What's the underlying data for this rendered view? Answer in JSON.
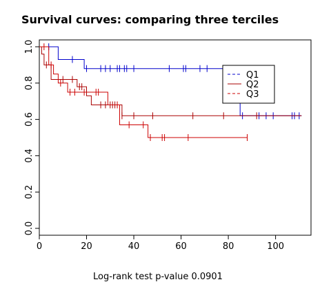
{
  "chart_data": {
    "type": "line",
    "title": "Survival curves: comparing three terciles",
    "xlabel": "",
    "ylabel": "",
    "xlim": [
      0,
      115
    ],
    "ylim": [
      0,
      1.0
    ],
    "x_ticks": [
      0,
      20,
      40,
      60,
      80,
      100
    ],
    "y_ticks": [
      0.0,
      0.2,
      0.4,
      0.6,
      0.8,
      1.0
    ],
    "x_tick_labels": [
      "0",
      "20",
      "40",
      "60",
      "80",
      "100"
    ],
    "y_tick_labels": [
      "0.0",
      "0.2",
      "0.4",
      "0.6",
      "0.8",
      "1.0"
    ],
    "grid": false,
    "legend_position": "top-right",
    "footer": "Log-rank test p-value  0.0901",
    "series": [
      {
        "name": "Q1",
        "color": "#0000cc",
        "line": "dashed-legend",
        "steps": [
          [
            0,
            1.0
          ],
          [
            8,
            1.0
          ],
          [
            8,
            0.93
          ],
          [
            19,
            0.93
          ],
          [
            19,
            0.88
          ],
          [
            85,
            0.88
          ],
          [
            85,
            0.62
          ],
          [
            111,
            0.62
          ]
        ],
        "censor_x": [
          4,
          14,
          20,
          26,
          28,
          30,
          33,
          34,
          36,
          37,
          40,
          55,
          61,
          62,
          68,
          71,
          78,
          86,
          93,
          96,
          99,
          107,
          108,
          110
        ]
      },
      {
        "name": "Q2",
        "color": "#aa0000",
        "line": "solid-legend",
        "steps": [
          [
            0,
            1.0
          ],
          [
            1,
            1.0
          ],
          [
            1,
            0.96
          ],
          [
            2,
            0.96
          ],
          [
            2,
            0.9
          ],
          [
            5,
            0.9
          ],
          [
            5,
            0.82
          ],
          [
            16,
            0.82
          ],
          [
            16,
            0.78
          ],
          [
            20,
            0.78
          ],
          [
            20,
            0.73
          ],
          [
            22,
            0.73
          ],
          [
            22,
            0.68
          ],
          [
            35,
            0.68
          ],
          [
            35,
            0.62
          ],
          [
            111,
            0.62
          ]
        ],
        "censor_x": [
          3,
          10,
          14,
          17,
          18,
          26,
          28,
          30,
          31,
          32,
          35,
          40,
          48,
          65,
          78,
          92
        ]
      },
      {
        "name": "Q3",
        "color": "#cc0000",
        "line": "dashed-legend",
        "steps": [
          [
            0,
            1.0
          ],
          [
            4,
            1.0
          ],
          [
            4,
            0.9
          ],
          [
            6,
            0.9
          ],
          [
            6,
            0.85
          ],
          [
            8,
            0.85
          ],
          [
            8,
            0.8
          ],
          [
            12,
            0.8
          ],
          [
            12,
            0.75
          ],
          [
            29,
            0.75
          ],
          [
            29,
            0.68
          ],
          [
            34,
            0.68
          ],
          [
            34,
            0.57
          ],
          [
            46,
            0.57
          ],
          [
            46,
            0.5
          ],
          [
            88,
            0.5
          ]
        ],
        "censor_x": [
          2,
          5,
          9,
          13,
          15,
          19,
          24,
          25,
          33,
          38,
          44,
          47,
          52,
          53,
          63,
          88
        ]
      }
    ]
  }
}
